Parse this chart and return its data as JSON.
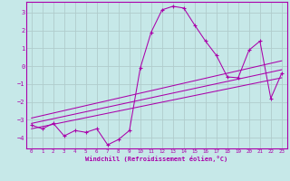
{
  "xlabel": "Windchill (Refroidissement éolien,°C)",
  "xlim": [
    -0.5,
    23.5
  ],
  "ylim": [
    -4.6,
    3.6
  ],
  "yticks": [
    -4,
    -3,
    -2,
    -1,
    0,
    1,
    2,
    3
  ],
  "xticks": [
    0,
    1,
    2,
    3,
    4,
    5,
    6,
    7,
    8,
    9,
    10,
    11,
    12,
    13,
    14,
    15,
    16,
    17,
    18,
    19,
    20,
    21,
    22,
    23
  ],
  "background_color": "#c6e8e8",
  "grid_color": "#b0cccc",
  "line_color": "#aa00aa",
  "curve1_x": [
    0,
    1,
    2,
    3,
    4,
    5,
    6,
    7,
    8,
    9,
    10,
    11,
    12,
    13,
    14,
    15,
    16,
    17,
    18,
    19,
    20,
    21,
    22,
    23
  ],
  "curve1_y": [
    -3.3,
    -3.5,
    -3.2,
    -3.9,
    -3.6,
    -3.7,
    -3.5,
    -4.4,
    -4.1,
    -3.6,
    -0.1,
    1.9,
    3.15,
    3.35,
    3.25,
    2.3,
    1.4,
    0.6,
    -0.6,
    -0.65,
    0.9,
    1.4,
    -1.8,
    -0.4
  ],
  "line1_x": [
    0,
    23
  ],
  "line1_y": [
    -3.5,
    -0.65
  ],
  "line2_x": [
    0,
    23
  ],
  "line2_y": [
    -3.2,
    -0.2
  ],
  "line3_x": [
    0,
    23
  ],
  "line3_y": [
    -2.9,
    0.3
  ]
}
